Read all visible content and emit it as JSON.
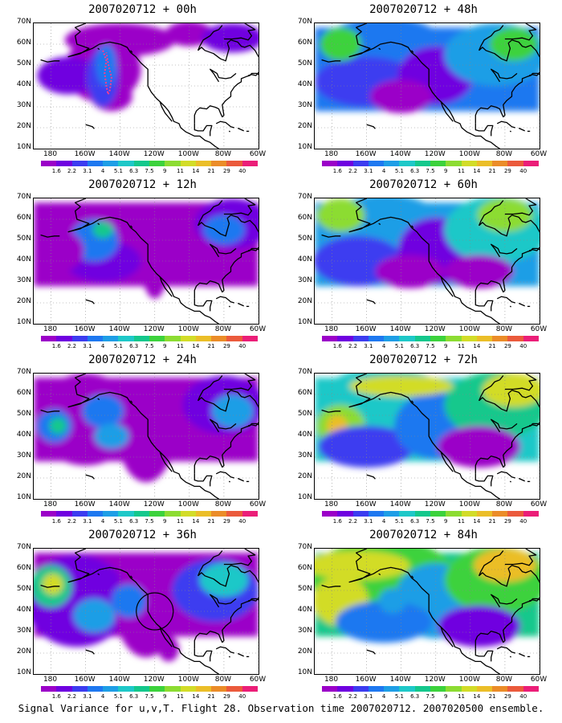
{
  "panels": [
    {
      "title": "2007020712 + 00h"
    },
    {
      "title": "2007020712 + 12h"
    },
    {
      "title": "2007020712 + 24h"
    },
    {
      "title": "2007020712 + 36h"
    },
    {
      "title": "2007020712 + 48h"
    },
    {
      "title": "2007020712 + 60h"
    },
    {
      "title": "2007020712 + 72h"
    },
    {
      "title": "2007020712 + 84h"
    }
  ],
  "lat_labels": [
    "70N",
    "60N",
    "50N",
    "40N",
    "30N",
    "20N",
    "10N"
  ],
  "lon_labels": [
    "180",
    "160W",
    "140W",
    "120W",
    "100W",
    "80W",
    "60W"
  ],
  "colorbar": {
    "labels": [
      "1.6",
      "2.2",
      "3.1",
      "4",
      "5.1",
      "6.3",
      "7.5",
      "9",
      "11",
      "14",
      "21",
      "29",
      "40"
    ],
    "colors": [
      "#9b00c8",
      "#6f00e0",
      "#3c3cf0",
      "#1e78f0",
      "#1e9ee6",
      "#1ec8c8",
      "#14c88c",
      "#3cd23c",
      "#8cdc32",
      "#d2dc28",
      "#ebbe28",
      "#eb8c28",
      "#eb5a3c",
      "#eb1e78"
    ]
  },
  "caption": "Signal Variance for u,v,T. Flight 28. Observation time 2007020712. 2007020500 ensemble.",
  "colors": {
    "land_outline": "#000000",
    "grid": "#888888",
    "background": "#ffffff"
  }
}
